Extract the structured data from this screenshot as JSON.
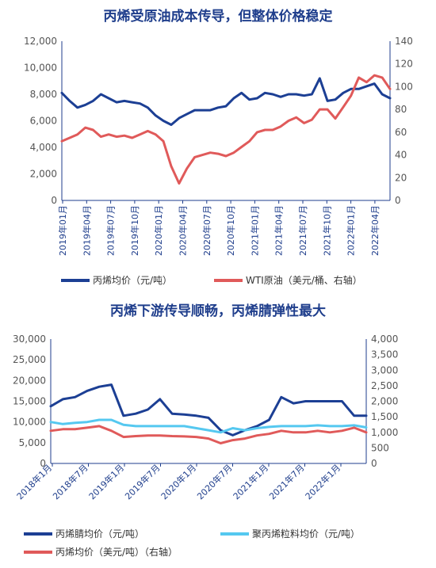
{
  "chart_data": [
    {
      "type": "line",
      "title": "丙烯受原油成本传导，但整体价格稳定",
      "x_tick_labels": [
        "2019年01月",
        "2019年04月",
        "2019年07月",
        "2019年10月",
        "2020年01月",
        "2020年04月",
        "2020年07月",
        "2020年10月",
        "2021年01月",
        "2021年04月",
        "2021年07月",
        "2021年10月",
        "2022年01月",
        "2022年04月"
      ],
      "ylim": [
        0,
        12000
      ],
      "y_ticks": [
        "0",
        "2,000",
        "4,000",
        "6,000",
        "8,000",
        "10,000",
        "12,000"
      ],
      "y2lim": [
        0,
        140
      ],
      "y2_ticks": [
        "0",
        "20",
        "40",
        "60",
        "80",
        "100",
        "120",
        "140"
      ],
      "grid": false,
      "legend_position": "bottom",
      "x": [
        "2019-01",
        "2019-02",
        "2019-03",
        "2019-04",
        "2019-05",
        "2019-06",
        "2019-07",
        "2019-08",
        "2019-09",
        "2019-10",
        "2019-11",
        "2019-12",
        "2020-01",
        "2020-02",
        "2020-03",
        "2020-04",
        "2020-05",
        "2020-06",
        "2020-07",
        "2020-08",
        "2020-09",
        "2020-10",
        "2020-11",
        "2020-12",
        "2021-01",
        "2021-02",
        "2021-03",
        "2021-04",
        "2021-05",
        "2021-06",
        "2021-07",
        "2021-08",
        "2021-09",
        "2021-10",
        "2021-11",
        "2021-12",
        "2022-01",
        "2022-02",
        "2022-03",
        "2022-04",
        "2022-05",
        "2022-06",
        "2022-07"
      ],
      "series": [
        {
          "name": "丙烯均价（元/吨）",
          "axis": "left",
          "color": "#1c3f94",
          "values": [
            8100,
            7500,
            7000,
            7200,
            7500,
            8000,
            7700,
            7400,
            7500,
            7400,
            7300,
            7000,
            6400,
            6000,
            5700,
            6200,
            6500,
            6800,
            6800,
            6800,
            7000,
            7100,
            7700,
            8100,
            7600,
            7700,
            8100,
            8000,
            7800,
            8000,
            8000,
            7900,
            8000,
            9200,
            7500,
            7600,
            8100,
            8400,
            8400,
            8600,
            8800,
            8000,
            7700
          ]
        },
        {
          "name": "WTI原油（美元/桶、右轴）",
          "axis": "right",
          "color": "#e05a5a",
          "values": [
            52,
            55,
            58,
            64,
            62,
            56,
            58,
            56,
            57,
            55,
            58,
            61,
            58,
            52,
            30,
            15,
            28,
            38,
            40,
            42,
            41,
            39,
            42,
            47,
            52,
            60,
            62,
            62,
            65,
            70,
            73,
            68,
            71,
            80,
            80,
            72,
            82,
            92,
            108,
            104,
            110,
            108,
            98
          ]
        }
      ]
    },
    {
      "type": "line",
      "title": "丙烯下游传导顺畅，丙烯腈弹性最大",
      "x_tick_labels": [
        "2018年1月",
        "2018年7月",
        "2019年1月",
        "2019年7月",
        "2020年1月",
        "2020年7月",
        "2021年1月",
        "2021年7月",
        "2022年1月"
      ],
      "ylim": [
        0,
        30000
      ],
      "y_ticks": [
        "0",
        "5,000",
        "10,000",
        "15,000",
        "20,000",
        "25,000",
        "30,000"
      ],
      "y2lim": [
        0,
        4000
      ],
      "y2_ticks": [
        "0",
        "500",
        "1,000",
        "1,500",
        "2,000",
        "2,500",
        "3,000",
        "3,500",
        "4,000"
      ],
      "grid": false,
      "legend_position": "bottom",
      "x": [
        "2018-01",
        "2018-03",
        "2018-05",
        "2018-07",
        "2018-09",
        "2018-11",
        "2019-01",
        "2019-03",
        "2019-05",
        "2019-07",
        "2019-09",
        "2019-11",
        "2020-01",
        "2020-03",
        "2020-05",
        "2020-07",
        "2020-09",
        "2020-11",
        "2021-01",
        "2021-03",
        "2021-05",
        "2021-07",
        "2021-09",
        "2021-11",
        "2022-01",
        "2022-03",
        "2022-05"
      ],
      "series": [
        {
          "name": "丙烯腈均价（元/吨）",
          "axis": "left",
          "color": "#1c3f94",
          "values": [
            13800,
            15500,
            16000,
            17500,
            18500,
            19000,
            11500,
            12000,
            13000,
            15500,
            12000,
            11800,
            11500,
            11000,
            8000,
            6800,
            8000,
            9000,
            10500,
            16000,
            14500,
            15000,
            15000,
            15000,
            15000,
            11500,
            11500
          ]
        },
        {
          "name": "聚丙烯粒料均价（元/吨）",
          "axis": "left",
          "color": "#55c8f0",
          "values": [
            10000,
            9500,
            9800,
            10000,
            10500,
            10500,
            9300,
            9000,
            9000,
            9000,
            9000,
            9000,
            8500,
            8000,
            7500,
            8500,
            8000,
            8500,
            8800,
            9000,
            9000,
            9000,
            9200,
            9000,
            9000,
            9200,
            8700
          ]
        },
        {
          "name": "丙烯均价（美元/吨）（右轴）",
          "axis": "right",
          "color": "#e05a5a",
          "values": [
            1050,
            1100,
            1100,
            1150,
            1200,
            1050,
            850,
            880,
            900,
            900,
            880,
            870,
            850,
            800,
            650,
            750,
            800,
            900,
            950,
            1050,
            1000,
            1000,
            1050,
            1000,
            1050,
            1150,
            1000
          ]
        }
      ]
    }
  ]
}
